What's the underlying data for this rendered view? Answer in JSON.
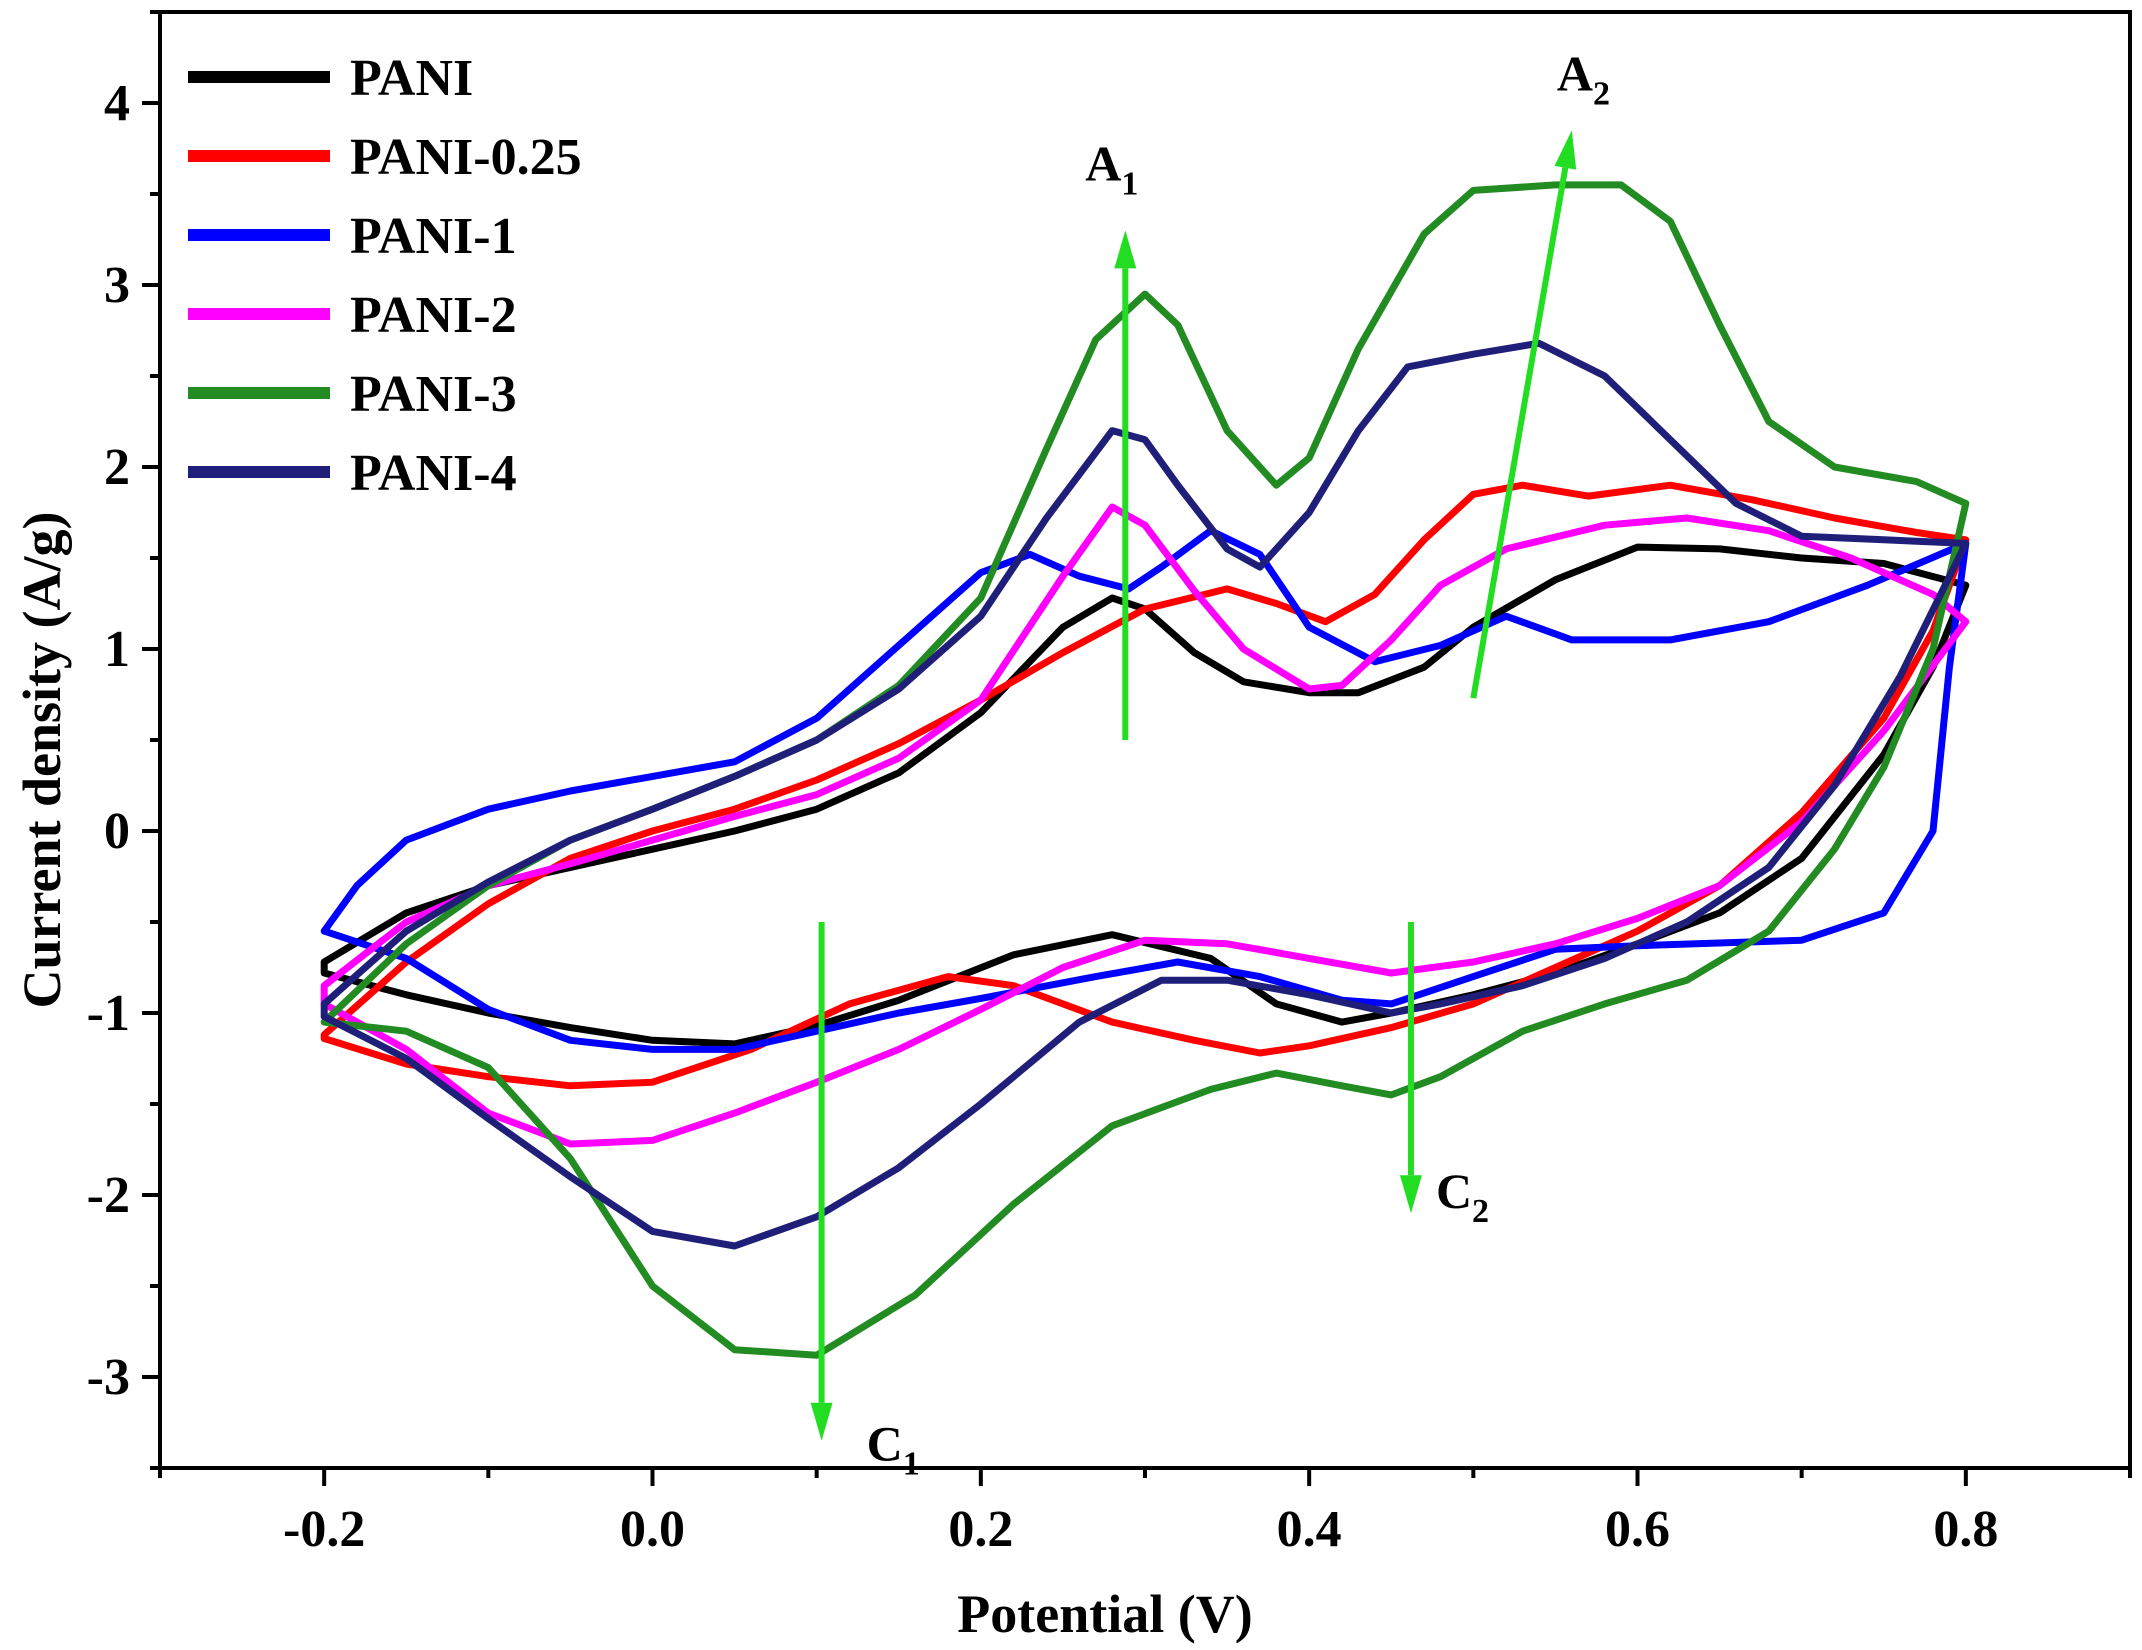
{
  "chart_data": {
    "type": "line",
    "title": "",
    "xlabel": "Potential (V)",
    "ylabel": "Current density  (A/g)",
    "xlim": [
      -0.3,
      0.9
    ],
    "ylim": [
      -3.5,
      4.5
    ],
    "xticks": [
      -0.2,
      0.0,
      0.2,
      0.4,
      0.6,
      0.8
    ],
    "xtick_labels": [
      "-0.2",
      "0.0",
      "0.2",
      "0.4",
      "0.6",
      "0.8"
    ],
    "yticks": [
      -3,
      -2,
      -1,
      0,
      1,
      2,
      3,
      4
    ],
    "ytick_labels": [
      "-3",
      "-2",
      "-1",
      "0",
      "1",
      "2",
      "3",
      "4"
    ],
    "grid": false,
    "legend_position": "top-left",
    "series": [
      {
        "name": "PANI",
        "color": "#000000",
        "anodic": [
          [
            -0.2,
            -0.72
          ],
          [
            -0.15,
            -0.45
          ],
          [
            -0.1,
            -0.3
          ],
          [
            -0.05,
            -0.2
          ],
          [
            0.0,
            -0.1
          ],
          [
            0.05,
            0.0
          ],
          [
            0.1,
            0.12
          ],
          [
            0.15,
            0.32
          ],
          [
            0.2,
            0.65
          ],
          [
            0.25,
            1.12
          ],
          [
            0.28,
            1.28
          ],
          [
            0.3,
            1.22
          ],
          [
            0.33,
            0.98
          ],
          [
            0.36,
            0.82
          ],
          [
            0.4,
            0.76
          ],
          [
            0.43,
            0.76
          ],
          [
            0.47,
            0.9
          ],
          [
            0.5,
            1.12
          ],
          [
            0.55,
            1.38
          ],
          [
            0.6,
            1.56
          ],
          [
            0.65,
            1.55
          ],
          [
            0.7,
            1.5
          ],
          [
            0.75,
            1.47
          ],
          [
            0.8,
            1.35
          ]
        ],
        "cathodic": [
          [
            0.8,
            1.35
          ],
          [
            0.78,
            0.9
          ],
          [
            0.75,
            0.42
          ],
          [
            0.7,
            -0.15
          ],
          [
            0.65,
            -0.45
          ],
          [
            0.6,
            -0.62
          ],
          [
            0.55,
            -0.78
          ],
          [
            0.5,
            -0.9
          ],
          [
            0.45,
            -1.0
          ],
          [
            0.42,
            -1.05
          ],
          [
            0.38,
            -0.95
          ],
          [
            0.34,
            -0.7
          ],
          [
            0.28,
            -0.57
          ],
          [
            0.22,
            -0.68
          ],
          [
            0.15,
            -0.93
          ],
          [
            0.1,
            -1.07
          ],
          [
            0.05,
            -1.17
          ],
          [
            0.0,
            -1.15
          ],
          [
            -0.05,
            -1.08
          ],
          [
            -0.1,
            -1.0
          ],
          [
            -0.15,
            -0.9
          ],
          [
            -0.2,
            -0.78
          ]
        ]
      },
      {
        "name": "PANI-0.25",
        "color": "#ff0000",
        "anodic": [
          [
            -0.2,
            -1.12
          ],
          [
            -0.15,
            -0.72
          ],
          [
            -0.1,
            -0.4
          ],
          [
            -0.05,
            -0.15
          ],
          [
            0.0,
            0.0
          ],
          [
            0.05,
            0.12
          ],
          [
            0.1,
            0.28
          ],
          [
            0.15,
            0.48
          ],
          [
            0.2,
            0.72
          ],
          [
            0.25,
            0.98
          ],
          [
            0.3,
            1.22
          ],
          [
            0.35,
            1.33
          ],
          [
            0.38,
            1.25
          ],
          [
            0.41,
            1.15
          ],
          [
            0.44,
            1.3
          ],
          [
            0.47,
            1.6
          ],
          [
            0.5,
            1.85
          ],
          [
            0.53,
            1.9
          ],
          [
            0.57,
            1.84
          ],
          [
            0.62,
            1.9
          ],
          [
            0.67,
            1.82
          ],
          [
            0.72,
            1.72
          ],
          [
            0.77,
            1.64
          ],
          [
            0.8,
            1.6
          ]
        ],
        "cathodic": [
          [
            0.8,
            1.6
          ],
          [
            0.78,
            1.1
          ],
          [
            0.75,
            0.62
          ],
          [
            0.7,
            0.1
          ],
          [
            0.65,
            -0.3
          ],
          [
            0.6,
            -0.55
          ],
          [
            0.55,
            -0.75
          ],
          [
            0.5,
            -0.95
          ],
          [
            0.45,
            -1.08
          ],
          [
            0.4,
            -1.18
          ],
          [
            0.37,
            -1.22
          ],
          [
            0.33,
            -1.15
          ],
          [
            0.28,
            -1.05
          ],
          [
            0.22,
            -0.85
          ],
          [
            0.18,
            -0.8
          ],
          [
            0.12,
            -0.95
          ],
          [
            0.06,
            -1.2
          ],
          [
            0.0,
            -1.38
          ],
          [
            -0.05,
            -1.4
          ],
          [
            -0.1,
            -1.35
          ],
          [
            -0.15,
            -1.28
          ],
          [
            -0.2,
            -1.14
          ]
        ]
      },
      {
        "name": "PANI-1",
        "color": "#0000ff",
        "anodic": [
          [
            -0.2,
            -0.55
          ],
          [
            -0.18,
            -0.3
          ],
          [
            -0.15,
            -0.05
          ],
          [
            -0.1,
            0.12
          ],
          [
            -0.05,
            0.22
          ],
          [
            0.0,
            0.3
          ],
          [
            0.05,
            0.38
          ],
          [
            0.1,
            0.62
          ],
          [
            0.15,
            1.02
          ],
          [
            0.2,
            1.42
          ],
          [
            0.23,
            1.52
          ],
          [
            0.26,
            1.4
          ],
          [
            0.29,
            1.33
          ],
          [
            0.31,
            1.45
          ],
          [
            0.34,
            1.65
          ],
          [
            0.37,
            1.52
          ],
          [
            0.4,
            1.12
          ],
          [
            0.44,
            0.93
          ],
          [
            0.48,
            1.02
          ],
          [
            0.52,
            1.18
          ],
          [
            0.56,
            1.05
          ],
          [
            0.62,
            1.05
          ],
          [
            0.68,
            1.15
          ],
          [
            0.74,
            1.35
          ],
          [
            0.8,
            1.58
          ]
        ],
        "cathodic": [
          [
            0.8,
            1.58
          ],
          [
            0.79,
            0.9
          ],
          [
            0.78,
            0.0
          ],
          [
            0.75,
            -0.45
          ],
          [
            0.7,
            -0.6
          ],
          [
            0.6,
            -0.63
          ],
          [
            0.55,
            -0.65
          ],
          [
            0.5,
            -0.8
          ],
          [
            0.45,
            -0.95
          ],
          [
            0.42,
            -0.93
          ],
          [
            0.37,
            -0.8
          ],
          [
            0.32,
            -0.72
          ],
          [
            0.27,
            -0.8
          ],
          [
            0.2,
            -0.92
          ],
          [
            0.15,
            -1.0
          ],
          [
            0.1,
            -1.1
          ],
          [
            0.05,
            -1.2
          ],
          [
            0.0,
            -1.2
          ],
          [
            -0.05,
            -1.15
          ],
          [
            -0.1,
            -0.98
          ],
          [
            -0.15,
            -0.7
          ],
          [
            -0.2,
            -0.55
          ]
        ]
      },
      {
        "name": "PANI-2",
        "color": "#ff00ff",
        "anodic": [
          [
            -0.2,
            -0.85
          ],
          [
            -0.15,
            -0.5
          ],
          [
            -0.1,
            -0.3
          ],
          [
            -0.05,
            -0.18
          ],
          [
            0.0,
            -0.05
          ],
          [
            0.05,
            0.08
          ],
          [
            0.1,
            0.2
          ],
          [
            0.15,
            0.4
          ],
          [
            0.2,
            0.72
          ],
          [
            0.25,
            1.4
          ],
          [
            0.28,
            1.78
          ],
          [
            0.3,
            1.68
          ],
          [
            0.33,
            1.32
          ],
          [
            0.36,
            1.0
          ],
          [
            0.4,
            0.78
          ],
          [
            0.42,
            0.8
          ],
          [
            0.45,
            1.05
          ],
          [
            0.48,
            1.35
          ],
          [
            0.52,
            1.55
          ],
          [
            0.58,
            1.68
          ],
          [
            0.63,
            1.72
          ],
          [
            0.68,
            1.65
          ],
          [
            0.73,
            1.5
          ],
          [
            0.78,
            1.3
          ],
          [
            0.8,
            1.15
          ]
        ],
        "cathodic": [
          [
            0.8,
            1.15
          ],
          [
            0.75,
            0.55
          ],
          [
            0.7,
            0.05
          ],
          [
            0.65,
            -0.3
          ],
          [
            0.6,
            -0.48
          ],
          [
            0.55,
            -0.62
          ],
          [
            0.5,
            -0.72
          ],
          [
            0.45,
            -0.78
          ],
          [
            0.4,
            -0.7
          ],
          [
            0.35,
            -0.62
          ],
          [
            0.3,
            -0.6
          ],
          [
            0.25,
            -0.75
          ],
          [
            0.2,
            -0.98
          ],
          [
            0.15,
            -1.2
          ],
          [
            0.1,
            -1.38
          ],
          [
            0.05,
            -1.55
          ],
          [
            0.0,
            -1.7
          ],
          [
            -0.05,
            -1.72
          ],
          [
            -0.1,
            -1.55
          ],
          [
            -0.15,
            -1.2
          ],
          [
            -0.2,
            -0.95
          ]
        ]
      },
      {
        "name": "PANI-3",
        "color": "#228b22",
        "anodic": [
          [
            -0.2,
            -1.05
          ],
          [
            -0.15,
            -0.62
          ],
          [
            -0.1,
            -0.3
          ],
          [
            -0.05,
            -0.05
          ],
          [
            0.0,
            0.12
          ],
          [
            0.05,
            0.3
          ],
          [
            0.1,
            0.5
          ],
          [
            0.15,
            0.8
          ],
          [
            0.2,
            1.28
          ],
          [
            0.24,
            2.1
          ],
          [
            0.27,
            2.7
          ],
          [
            0.3,
            2.95
          ],
          [
            0.32,
            2.78
          ],
          [
            0.35,
            2.2
          ],
          [
            0.38,
            1.9
          ],
          [
            0.4,
            2.05
          ],
          [
            0.43,
            2.65
          ],
          [
            0.47,
            3.28
          ],
          [
            0.5,
            3.52
          ],
          [
            0.55,
            3.55
          ],
          [
            0.59,
            3.55
          ],
          [
            0.62,
            3.35
          ],
          [
            0.65,
            2.78
          ],
          [
            0.68,
            2.25
          ],
          [
            0.72,
            2.0
          ],
          [
            0.77,
            1.92
          ],
          [
            0.8,
            1.8
          ]
        ],
        "cathodic": [
          [
            0.8,
            1.8
          ],
          [
            0.78,
            1.0
          ],
          [
            0.75,
            0.35
          ],
          [
            0.72,
            -0.1
          ],
          [
            0.68,
            -0.55
          ],
          [
            0.63,
            -0.82
          ],
          [
            0.58,
            -0.95
          ],
          [
            0.53,
            -1.1
          ],
          [
            0.48,
            -1.35
          ],
          [
            0.45,
            -1.45
          ],
          [
            0.42,
            -1.4
          ],
          [
            0.38,
            -1.33
          ],
          [
            0.34,
            -1.42
          ],
          [
            0.28,
            -1.62
          ],
          [
            0.22,
            -2.05
          ],
          [
            0.16,
            -2.55
          ],
          [
            0.1,
            -2.88
          ],
          [
            0.05,
            -2.85
          ],
          [
            0.0,
            -2.5
          ],
          [
            -0.05,
            -1.8
          ],
          [
            -0.1,
            -1.3
          ],
          [
            -0.15,
            -1.1
          ],
          [
            -0.2,
            -1.05
          ]
        ]
      },
      {
        "name": "PANI-4",
        "color": "#1f1f7a",
        "anodic": [
          [
            -0.2,
            -0.95
          ],
          [
            -0.15,
            -0.55
          ],
          [
            -0.1,
            -0.28
          ],
          [
            -0.05,
            -0.05
          ],
          [
            0.0,
            0.12
          ],
          [
            0.05,
            0.3
          ],
          [
            0.1,
            0.5
          ],
          [
            0.15,
            0.78
          ],
          [
            0.2,
            1.18
          ],
          [
            0.24,
            1.72
          ],
          [
            0.28,
            2.2
          ],
          [
            0.3,
            2.15
          ],
          [
            0.32,
            1.9
          ],
          [
            0.35,
            1.55
          ],
          [
            0.37,
            1.45
          ],
          [
            0.4,
            1.75
          ],
          [
            0.43,
            2.2
          ],
          [
            0.46,
            2.55
          ],
          [
            0.5,
            2.62
          ],
          [
            0.54,
            2.68
          ],
          [
            0.58,
            2.5
          ],
          [
            0.62,
            2.15
          ],
          [
            0.66,
            1.8
          ],
          [
            0.7,
            1.62
          ],
          [
            0.75,
            1.6
          ],
          [
            0.8,
            1.58
          ]
        ],
        "cathodic": [
          [
            0.8,
            1.58
          ],
          [
            0.76,
            0.85
          ],
          [
            0.72,
            0.25
          ],
          [
            0.68,
            -0.2
          ],
          [
            0.63,
            -0.5
          ],
          [
            0.58,
            -0.7
          ],
          [
            0.53,
            -0.85
          ],
          [
            0.48,
            -0.95
          ],
          [
            0.45,
            -1.0
          ],
          [
            0.4,
            -0.9
          ],
          [
            0.35,
            -0.82
          ],
          [
            0.31,
            -0.82
          ],
          [
            0.26,
            -1.05
          ],
          [
            0.2,
            -1.5
          ],
          [
            0.15,
            -1.85
          ],
          [
            0.1,
            -2.12
          ],
          [
            0.05,
            -2.28
          ],
          [
            0.0,
            -2.2
          ],
          [
            -0.05,
            -1.9
          ],
          [
            -0.1,
            -1.58
          ],
          [
            -0.15,
            -1.25
          ],
          [
            -0.2,
            -1.02
          ]
        ]
      }
    ],
    "annotations": [
      {
        "id": "A1",
        "text": "A",
        "sub": "1",
        "arrow_from": [
          0.288,
          0.5
        ],
        "arrow_to": [
          0.288,
          3.3
        ],
        "direction": "up"
      },
      {
        "id": "A2",
        "text": "A",
        "sub": "2",
        "arrow_from": [
          0.5,
          0.73
        ],
        "arrow_to": [
          0.56,
          3.85
        ],
        "direction": "up"
      },
      {
        "id": "C1",
        "text": "C",
        "sub": "1",
        "arrow_from": [
          0.103,
          -0.5
        ],
        "arrow_to": [
          0.103,
          -3.35
        ],
        "direction": "down"
      },
      {
        "id": "C2",
        "text": "C",
        "sub": "2",
        "arrow_from": [
          0.462,
          -0.5
        ],
        "arrow_to": [
          0.462,
          -2.1
        ],
        "direction": "down"
      }
    ],
    "arrow_color": "#22dd22"
  }
}
